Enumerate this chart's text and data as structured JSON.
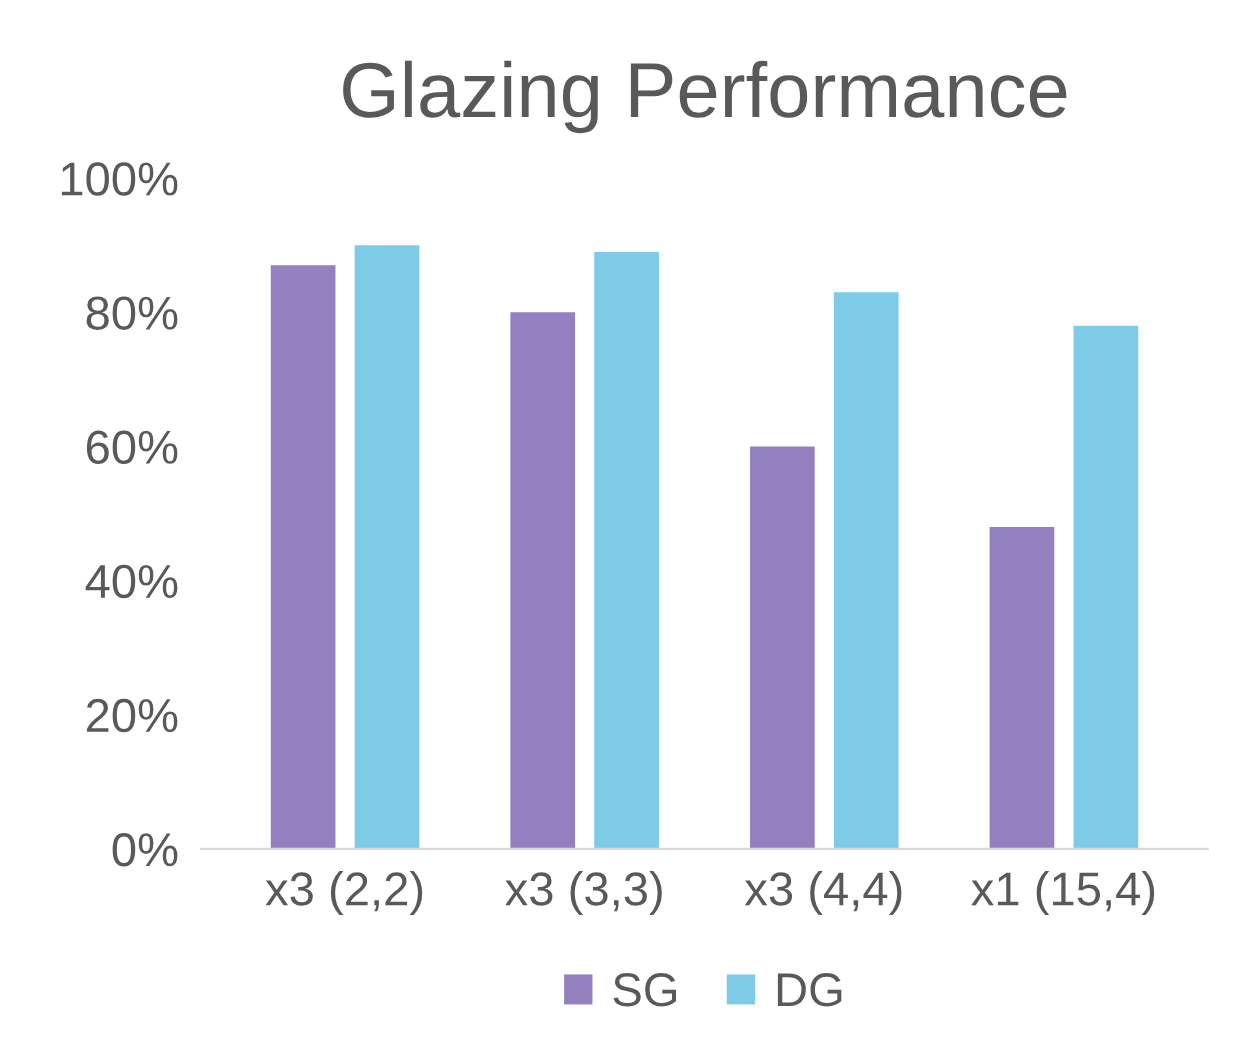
{
  "chart_data": {
    "type": "bar",
    "title": "Glazing Performance",
    "categories": [
      "x3 (2,2)",
      "x3 (3,3)",
      "x3 (4,4)",
      "x1 (15,4)"
    ],
    "series": [
      {
        "name": "SG",
        "color": "#9480bf",
        "values": [
          87,
          80,
          60,
          48
        ]
      },
      {
        "name": "DG",
        "color": "#7ecbe8",
        "values": [
          90,
          89,
          83,
          78
        ]
      }
    ],
    "ylim": [
      0,
      100
    ],
    "yticks": [
      {
        "value": 0,
        "label": "0%"
      },
      {
        "value": 20,
        "label": "20%"
      },
      {
        "value": 40,
        "label": "40%"
      },
      {
        "value": 60,
        "label": "60%"
      },
      {
        "value": 80,
        "label": "80%"
      },
      {
        "value": 100,
        "label": "100%"
      }
    ],
    "grid": false,
    "legend": "bottom"
  }
}
